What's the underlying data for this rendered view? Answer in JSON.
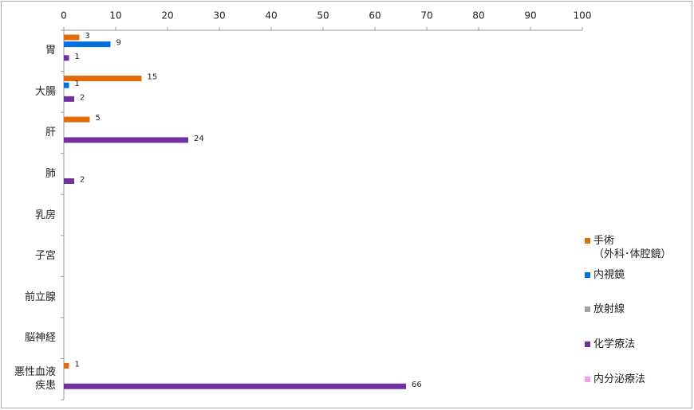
{
  "chart_data": {
    "type": "hbar",
    "categories": [
      "胃",
      "大腸",
      "肝",
      "肺",
      "乳房",
      "子宮",
      "前立腺",
      "脳神経",
      "悪性血液\n疾患"
    ],
    "series": [
      {
        "name": "手術\n（外科･体腔鏡）",
        "color": "#e36c0a",
        "values": [
          3,
          15,
          5,
          null,
          null,
          null,
          null,
          null,
          1
        ]
      },
      {
        "name": "内視鏡",
        "color": "#0070e0",
        "values": [
          9,
          1,
          null,
          null,
          null,
          null,
          null,
          null,
          null
        ]
      },
      {
        "name": "放射線",
        "color": "#a0a0a0",
        "values": [
          null,
          null,
          null,
          null,
          null,
          null,
          null,
          null,
          null
        ]
      },
      {
        "name": "化学療法",
        "color": "#7030a0",
        "values": [
          1,
          2,
          24,
          2,
          null,
          null,
          null,
          null,
          66
        ]
      },
      {
        "name": "内分泌療法",
        "color": "#ff99ee",
        "values": [
          null,
          null,
          null,
          null,
          null,
          null,
          null,
          null,
          null
        ]
      }
    ],
    "xlim": [
      0,
      100
    ],
    "xticks": [
      0,
      10,
      20,
      30,
      40,
      50,
      60,
      70,
      80,
      90,
      100
    ]
  }
}
